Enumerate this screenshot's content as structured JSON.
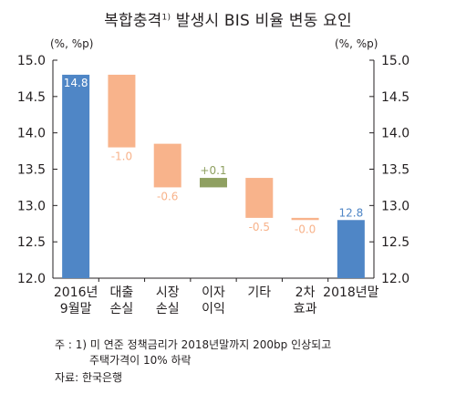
{
  "title": "복합충격",
  "title_sup": "1)",
  "title_rest": " 발생시 BIS 비율 변동 요인",
  "left_unit": "(%, %p)",
  "right_unit": "(%, %p)",
  "note_line1": "주 : 1) 미 연준 정책금리가 2018년말까지 200bp 인상되고",
  "note_line2": "주택가격이 10% 하락",
  "source": "자료: 한국은행",
  "colors": {
    "total": "#4f86c6",
    "negative": "#f8b38b",
    "positive": "#8fa061"
  },
  "chart_data": {
    "type": "bar",
    "subtype": "waterfall",
    "categories": [
      [
        "2016년",
        "9월말"
      ],
      [
        "대출",
        "손실"
      ],
      [
        "시장",
        "손실"
      ],
      [
        "이자",
        "이익"
      ],
      [
        "기타"
      ],
      [
        "2차",
        "효과"
      ],
      [
        "2018년말"
      ]
    ],
    "values": [
      14.8,
      -1.0,
      -0.6,
      0.1,
      -0.5,
      -0.0,
      12.8
    ],
    "value_labels": [
      "14.8",
      "-1.0",
      "-0.6",
      "+0.1",
      "-0.5",
      "-0.0",
      "12.8"
    ],
    "bars": [
      {
        "kind": "total",
        "start": 12.0,
        "end": 14.8
      },
      {
        "kind": "negative",
        "start": 14.8,
        "end": 13.8
      },
      {
        "kind": "negative",
        "start": 13.85,
        "end": 13.25
      },
      {
        "kind": "positive",
        "start": 13.25,
        "end": 13.38
      },
      {
        "kind": "negative",
        "start": 13.38,
        "end": 12.83
      },
      {
        "kind": "negative",
        "start": 12.83,
        "end": 12.8
      },
      {
        "kind": "total",
        "start": 12.0,
        "end": 12.8
      }
    ],
    "ylim": [
      12.0,
      15.0
    ],
    "yticks": [
      "12.0",
      "12.5",
      "13.0",
      "13.5",
      "14.0",
      "14.5",
      "15.0"
    ],
    "grid": false
  }
}
